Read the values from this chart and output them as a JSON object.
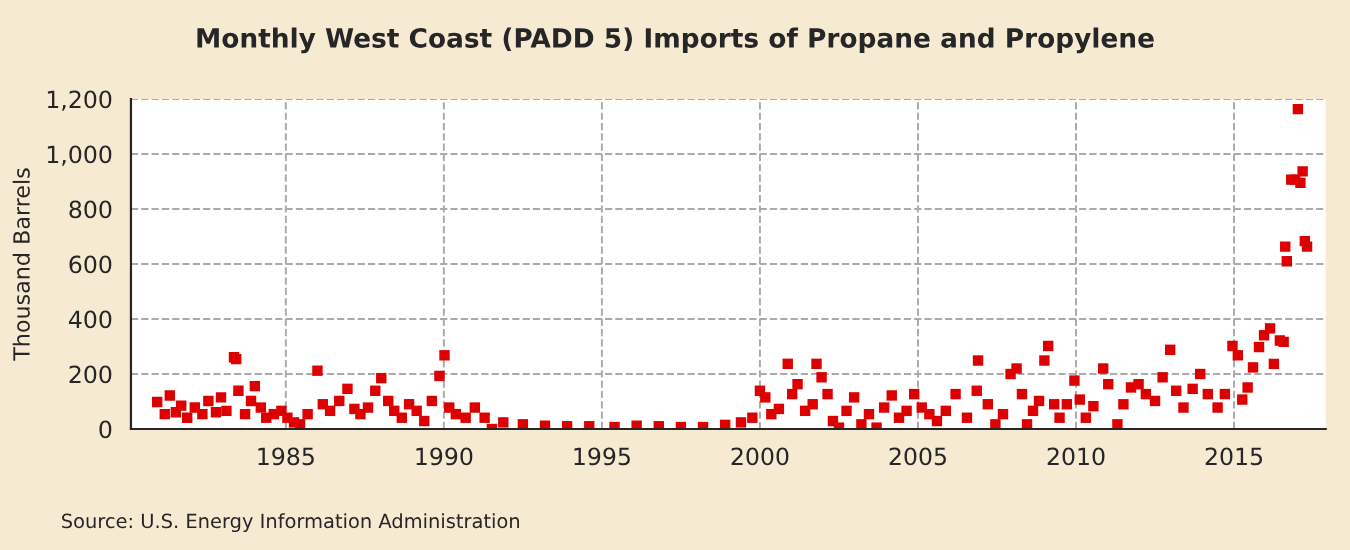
{
  "chart_data": {
    "type": "scatter",
    "title": "Monthly West Coast (PADD 5) Imports of Propane and Propylene",
    "ylabel": "Thousand Barrels",
    "annotations": [
      "Source: U.S. Energy Information Administration"
    ],
    "marker": "square",
    "grid": true,
    "xlim": [
      1980.1,
      2017.9
    ],
    "ylim": [
      0,
      1200
    ],
    "xticks": [
      1985,
      1990,
      1995,
      2000,
      2005,
      2010,
      2015
    ],
    "yticks": [
      0,
      200,
      400,
      600,
      800,
      {
        "value": 1000,
        "label": "1,000"
      },
      {
        "value": 1200,
        "label": "1,200"
      }
    ],
    "series": [
      {
        "color": "#dd0000",
        "x": [
          1980.93,
          1981.17,
          1981.33,
          1981.52,
          1981.69,
          1981.88,
          1982.12,
          1982.36,
          1982.55,
          1982.79,
          1982.95,
          1983.12,
          1983.36,
          1983.43,
          1983.5,
          1983.71,
          1983.9,
          1984.02,
          1984.21,
          1984.38,
          1984.62,
          1984.86,
          1985.05,
          1985.26,
          1985.45,
          1985.69,
          1986.0,
          1986.17,
          1986.4,
          1986.69,
          1986.95,
          1987.17,
          1987.36,
          1987.6,
          1987.83,
          1988.02,
          1988.24,
          1988.43,
          1988.67,
          1988.9,
          1989.14,
          1989.38,
          1989.62,
          1989.86,
          1990.02,
          1990.17,
          1990.38,
          1990.69,
          1990.98,
          1991.29,
          1991.52,
          1991.88,
          1992.5,
          1993.2,
          1993.9,
          1994.6,
          1995.4,
          1996.1,
          1996.8,
          1997.5,
          1998.2,
          1998.9,
          1999.4,
          1999.76,
          2000.0,
          2000.17,
          2000.36,
          2000.6,
          2000.88,
          2001.02,
          2001.19,
          2001.43,
          2001.67,
          2001.79,
          2001.95,
          2002.14,
          2002.31,
          2002.5,
          2002.74,
          2002.98,
          2003.21,
          2003.45,
          2003.69,
          2003.93,
          2004.17,
          2004.4,
          2004.64,
          2004.88,
          2005.12,
          2005.36,
          2005.6,
          2005.88,
          2006.19,
          2006.55,
          2006.86,
          2006.9,
          2007.21,
          2007.45,
          2007.69,
          2007.93,
          2008.12,
          2008.29,
          2008.45,
          2008.64,
          2008.83,
          2009.0,
          2009.12,
          2009.31,
          2009.48,
          2009.71,
          2009.95,
          2010.12,
          2010.31,
          2010.55,
          2010.86,
          2011.02,
          2011.31,
          2011.5,
          2011.74,
          2011.98,
          2012.21,
          2012.5,
          2012.74,
          2012.98,
          2013.17,
          2013.4,
          2013.69,
          2013.93,
          2014.17,
          2014.48,
          2014.71,
          2014.95,
          2015.12,
          2015.26,
          2015.43,
          2015.6,
          2015.79,
          2015.95,
          2016.14,
          2016.26,
          2016.45,
          2016.57,
          2016.62,
          2016.67,
          2016.81,
          2016.93,
          2017.02,
          2017.1,
          2017.17,
          2017.24,
          2017.31
        ],
        "values": [
          98,
          54,
          122,
          61,
          85,
          41,
          78,
          54,
          102,
          61,
          115,
          66,
          261,
          254,
          139,
          54,
          102,
          156,
          78,
          41,
          54,
          66,
          41,
          24,
          17,
          54,
          212,
          90,
          66,
          102,
          146,
          73,
          54,
          78,
          139,
          185,
          102,
          66,
          41,
          90,
          66,
          29,
          102,
          193,
          268,
          78,
          54,
          41,
          78,
          41,
          0,
          24,
          17,
          12,
          10,
          10,
          7,
          12,
          10,
          7,
          7,
          15,
          24,
          41,
          139,
          115,
          54,
          73,
          237,
          127,
          163,
          66,
          90,
          237,
          188,
          127,
          29,
          5,
          66,
          115,
          17,
          54,
          5,
          78,
          122,
          41,
          66,
          127,
          78,
          54,
          29,
          66,
          127,
          41,
          139,
          249,
          90,
          17,
          54,
          200,
          220,
          127,
          17,
          66,
          102,
          249,
          302,
          90,
          41,
          90,
          176,
          107,
          41,
          83,
          220,
          163,
          17,
          90,
          151,
          163,
          127,
          102,
          188,
          288,
          139,
          78,
          146,
          200,
          127,
          78,
          127,
          302,
          268,
          107,
          151,
          224,
          298,
          341,
          366,
          237,
          322,
          317,
          663,
          610,
          907,
          907,
          1163,
          895,
          937,
          683,
          663
        ]
      }
    ]
  }
}
